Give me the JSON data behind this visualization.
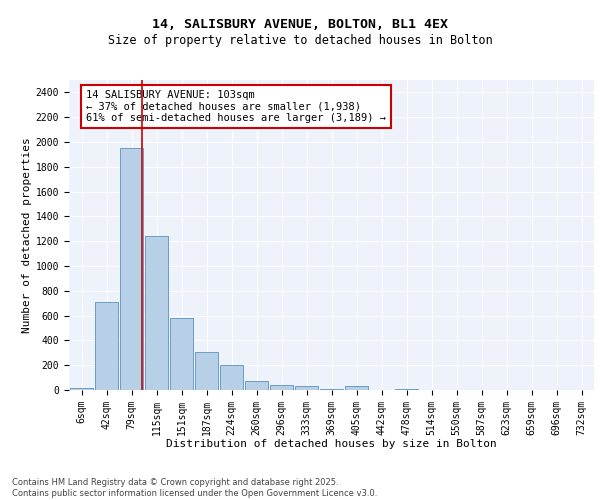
{
  "title_line1": "14, SALISBURY AVENUE, BOLTON, BL1 4EX",
  "title_line2": "Size of property relative to detached houses in Bolton",
  "xlabel": "Distribution of detached houses by size in Bolton",
  "ylabel": "Number of detached properties",
  "bin_labels": [
    "6sqm",
    "42sqm",
    "79sqm",
    "115sqm",
    "151sqm",
    "187sqm",
    "224sqm",
    "260sqm",
    "296sqm",
    "333sqm",
    "369sqm",
    "405sqm",
    "442sqm",
    "478sqm",
    "514sqm",
    "550sqm",
    "587sqm",
    "623sqm",
    "659sqm",
    "696sqm",
    "732sqm"
  ],
  "bar_values": [
    15,
    710,
    1950,
    1240,
    580,
    305,
    200,
    75,
    40,
    30,
    10,
    30,
    0,
    10,
    0,
    0,
    0,
    0,
    0,
    0,
    0
  ],
  "bar_color": "#b8cfe8",
  "bar_edgecolor": "#6a9cc4",
  "vline_x": 2.42,
  "vline_color": "#cc0000",
  "annotation_text": "14 SALISBURY AVENUE: 103sqm\n← 37% of detached houses are smaller (1,938)\n61% of semi-detached houses are larger (3,189) →",
  "annotation_box_color": "#ffffff",
  "annotation_box_edgecolor": "#cc0000",
  "ylim": [
    0,
    2500
  ],
  "yticks": [
    0,
    200,
    400,
    600,
    800,
    1000,
    1200,
    1400,
    1600,
    1800,
    2000,
    2200,
    2400
  ],
  "background_color": "#eef2fa",
  "grid_color": "#ffffff",
  "footer_text": "Contains HM Land Registry data © Crown copyright and database right 2025.\nContains public sector information licensed under the Open Government Licence v3.0.",
  "title_fontsize": 9.5,
  "subtitle_fontsize": 8.5,
  "axis_label_fontsize": 8,
  "tick_fontsize": 7,
  "annotation_fontsize": 7.5,
  "footer_fontsize": 6
}
